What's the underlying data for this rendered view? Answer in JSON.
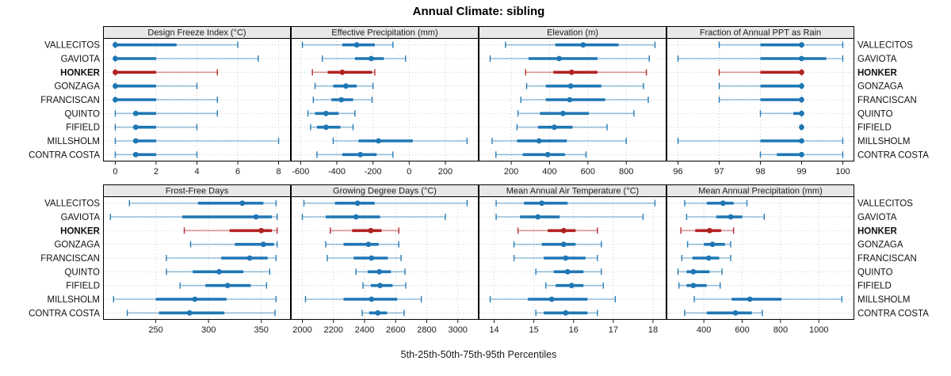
{
  "title": "Annual Climate: sibling",
  "footer": "5th-25th-50th-75th-95th Percentiles",
  "colors": {
    "normal": "#1F77B4",
    "highlight": "#B22222",
    "grid": "#CBCBCB",
    "strip_bg": "#E8E8E8",
    "border": "#000000",
    "tick_text": "#1a1a1a"
  },
  "chart_data": {
    "type": "dot-interval percentile trellis (5-25-50-75-95)",
    "title": "Annual Climate: sibling",
    "xlabel": "5th-25th-50th-75th-95th Percentiles",
    "percentiles": [
      5,
      25,
      50,
      75,
      95
    ],
    "legend_position": "none",
    "grid": "dotted",
    "series": [
      "VALLECITOS",
      "GAVIOTA",
      "HONKER",
      "GONZAGA",
      "FRANCISCAN",
      "QUINTO",
      "FIFIELD",
      "MILLSHOLM",
      "CONTRA COSTA"
    ],
    "highlighted_series": "HONKER",
    "panels": [
      {
        "label": "Design Freeze Index (°C)",
        "ticks": [
          0,
          2,
          4,
          6,
          8
        ],
        "xlim": [
          -0.6,
          8.6
        ],
        "values": {
          "VALLECITOS": [
            0,
            0,
            0,
            3,
            6
          ],
          "GAVIOTA": [
            0,
            0,
            0,
            2,
            7
          ],
          "HONKER": [
            0,
            0,
            0,
            2,
            5
          ],
          "GONZAGA": [
            0,
            0,
            0,
            2,
            4
          ],
          "FRANCISCAN": [
            0,
            0,
            0,
            2,
            5
          ],
          "QUINTO": [
            0,
            1,
            1,
            2,
            5
          ],
          "FIFIELD": [
            0,
            1,
            1,
            2,
            4
          ],
          "MILLSHOLM": [
            0,
            1,
            1,
            2,
            8
          ],
          "CONTRA COSTA": [
            0,
            1,
            1,
            2,
            4
          ]
        }
      },
      {
        "label": "Effective Precipitation (mm)",
        "ticks": [
          -600,
          -400,
          -200,
          0,
          200
        ],
        "xlim": [
          -654,
          384
        ],
        "values": {
          "VALLECITOS": [
            -590,
            -370,
            -290,
            -190,
            -90
          ],
          "GAVIOTA": [
            -480,
            -300,
            -210,
            -140,
            -20
          ],
          "HONKER": [
            -535,
            -450,
            -370,
            -205,
            -190
          ],
          "GONZAGA": [
            -520,
            -420,
            -350,
            -290,
            -200
          ],
          "FRANCISCAN": [
            -530,
            -430,
            -375,
            -310,
            -205
          ],
          "QUINTO": [
            -560,
            -520,
            -460,
            -390,
            -300
          ],
          "FIFIELD": [
            -545,
            -510,
            -460,
            -380,
            -310
          ],
          "MILLSHOLM": [
            -420,
            -280,
            -170,
            20,
            320
          ],
          "CONTRA COSTA": [
            -510,
            -370,
            -270,
            -180,
            -90
          ]
        }
      },
      {
        "label": "Elevation (m)",
        "ticks": [
          200,
          400,
          600,
          800
        ],
        "xlim": [
          30,
          1010
        ],
        "values": {
          "VALLECITOS": [
            170,
            430,
            575,
            760,
            950
          ],
          "GAVIOTA": [
            90,
            290,
            450,
            650,
            920
          ],
          "HONKER": [
            275,
            420,
            515,
            650,
            905
          ],
          "GONZAGA": [
            280,
            380,
            510,
            670,
            890
          ],
          "FRANCISCAN": [
            250,
            380,
            505,
            690,
            915
          ],
          "QUINTO": [
            235,
            350,
            470,
            605,
            840
          ],
          "FIFIELD": [
            230,
            340,
            425,
            520,
            700
          ],
          "MILLSHOLM": [
            100,
            230,
            345,
            490,
            800
          ],
          "CONTRA COSTA": [
            120,
            260,
            390,
            480,
            590
          ]
        }
      },
      {
        "label": "Fraction of Annual PPT as Rain",
        "ticks": [
          96,
          97,
          98,
          99,
          100
        ],
        "xlim": [
          95.72,
          100.28
        ],
        "values": {
          "VALLECITOS": [
            97,
            98,
            99,
            99,
            100
          ],
          "GAVIOTA": [
            96,
            98,
            99,
            99.6,
            100
          ],
          "HONKER": [
            97,
            98,
            99,
            99,
            99
          ],
          "GONZAGA": [
            97,
            98,
            99,
            99,
            99
          ],
          "FRANCISCAN": [
            97,
            98,
            99,
            99,
            99
          ],
          "QUINTO": [
            98,
            98.8,
            99,
            99,
            99
          ],
          "FIFIELD": [
            99,
            99,
            99,
            99,
            99
          ],
          "MILLSHOLM": [
            96,
            98,
            99,
            99,
            100
          ],
          "CONTRA COSTA": [
            98,
            98.4,
            99,
            99,
            100
          ]
        }
      },
      {
        "label": "Frost-Free Days",
        "ticks": [
          250,
          300,
          350
        ],
        "xlim": [
          200,
          378
        ],
        "values": {
          "VALLECITOS": [
            225,
            290,
            332,
            352,
            364
          ],
          "GAVIOTA": [
            207,
            275,
            345,
            360,
            365
          ],
          "HONKER": [
            277,
            320,
            350,
            360,
            365
          ],
          "GONZAGA": [
            283,
            325,
            352,
            362,
            365
          ],
          "FRANCISCAN": [
            260,
            312,
            339,
            356,
            364
          ],
          "QUINTO": [
            260,
            285,
            310,
            333,
            358
          ],
          "FIFIELD": [
            273,
            297,
            318,
            340,
            355
          ],
          "MILLSHOLM": [
            210,
            250,
            287,
            317,
            364
          ],
          "CONTRA COSTA": [
            223,
            253,
            282,
            315,
            363
          ]
        }
      },
      {
        "label": "Growing Degree Days (°C)",
        "ticks": [
          2000,
          2200,
          2400,
          2600,
          2800,
          3000
        ],
        "xlim": [
          1926,
          3134
        ],
        "values": {
          "VALLECITOS": [
            2010,
            2210,
            2355,
            2465,
            3060
          ],
          "GAVIOTA": [
            2000,
            2150,
            2345,
            2500,
            2920
          ],
          "HONKER": [
            2180,
            2320,
            2440,
            2510,
            2620
          ],
          "GONZAGA": [
            2150,
            2265,
            2425,
            2490,
            2620
          ],
          "FRANCISCAN": [
            2160,
            2330,
            2445,
            2550,
            2635
          ],
          "QUINTO": [
            2345,
            2420,
            2495,
            2570,
            2660
          ],
          "FIFIELD": [
            2390,
            2440,
            2500,
            2580,
            2665
          ],
          "MILLSHOLM": [
            2020,
            2265,
            2445,
            2610,
            2765
          ],
          "CONTRA COSTA": [
            2385,
            2430,
            2485,
            2545,
            2655
          ]
        }
      },
      {
        "label": "Mean Annual Air Temperature (°C)",
        "ticks": [
          14,
          15,
          16,
          17,
          18
        ],
        "xlim": [
          13.61,
          18.34
        ],
        "values": {
          "VALLECITOS": [
            14.05,
            14.75,
            15.2,
            15.85,
            18.05
          ],
          "GAVIOTA": [
            14.05,
            14.65,
            15.1,
            15.65,
            17.75
          ],
          "HONKER": [
            14.6,
            15.35,
            15.75,
            16.05,
            16.6
          ],
          "GONZAGA": [
            14.5,
            15.2,
            15.75,
            16.05,
            16.7
          ],
          "FRANCISCAN": [
            14.5,
            15.25,
            15.8,
            16.3,
            16.6
          ],
          "QUINTO": [
            15.05,
            15.5,
            15.85,
            16.25,
            16.7
          ],
          "FIFIELD": [
            15.3,
            15.55,
            15.95,
            16.25,
            16.75
          ],
          "MILLSHOLM": [
            13.9,
            14.85,
            15.45,
            16.35,
            17.05
          ],
          "CONTRA COSTA": [
            15.05,
            15.25,
            15.8,
            16.35,
            16.6
          ]
        }
      },
      {
        "label": "Mean Annual Precipitation (mm)",
        "ticks": [
          400,
          600,
          800,
          1000
        ],
        "xlim": [
          205,
          1185
        ],
        "values": {
          "VALLECITOS": [
            300,
            415,
            500,
            555,
            625
          ],
          "GAVIOTA": [
            310,
            465,
            540,
            600,
            715
          ],
          "HONKER": [
            280,
            355,
            430,
            490,
            555
          ],
          "GONZAGA": [
            315,
            400,
            445,
            510,
            540
          ],
          "FRANCISCAN": [
            285,
            340,
            425,
            480,
            540
          ],
          "QUINTO": [
            265,
            310,
            345,
            430,
            495
          ],
          "FIFIELD": [
            270,
            310,
            345,
            415,
            485
          ],
          "MILLSHOLM": [
            350,
            545,
            640,
            805,
            1120
          ],
          "CONTRA COSTA": [
            300,
            415,
            565,
            650,
            705
          ]
        }
      }
    ]
  }
}
